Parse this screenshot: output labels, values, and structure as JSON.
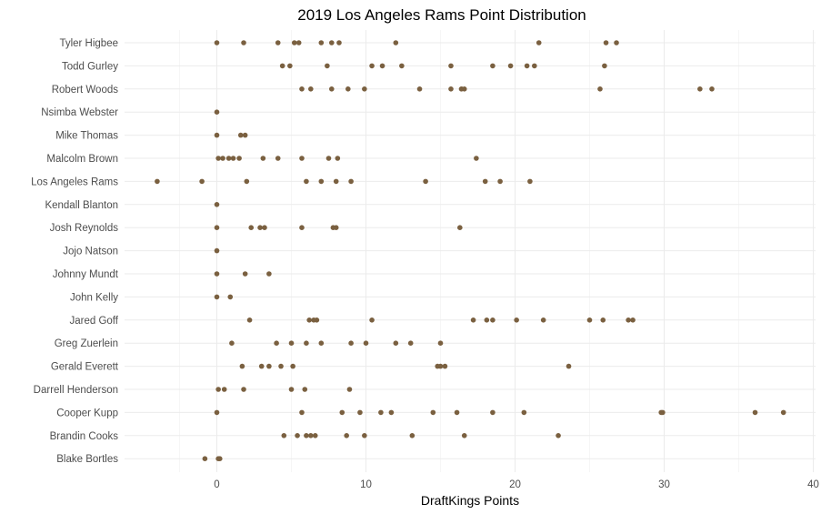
{
  "chart_data": {
    "type": "scatter",
    "title": "2019 Los Angeles Rams Point Distribution",
    "xlabel": "DraftKings Points",
    "ylabel": "",
    "xlim": [
      -5,
      40
    ],
    "x_ticks": [
      0,
      10,
      20,
      30,
      40
    ],
    "grid": true,
    "point_color": "#7a6040",
    "categories": [
      "Tyler Higbee",
      "Todd Gurley",
      "Robert Woods",
      "Nsimba Webster",
      "Mike Thomas",
      "Malcolm Brown",
      "Los Angeles Rams",
      "Kendall Blanton",
      "Josh Reynolds",
      "Jojo Natson",
      "Johnny Mundt",
      "John Kelly",
      "Jared Goff",
      "Greg Zuerlein",
      "Gerald Everett",
      "Darrell Henderson",
      "Cooper Kupp",
      "Brandin Cooks",
      "Blake Bortles"
    ],
    "series": [
      {
        "values": [
          0,
          1.8,
          4.1,
          5.2,
          5.5,
          7.0,
          7.7,
          8.2,
          12.0,
          21.6,
          26.1,
          26.8
        ]
      },
      {
        "values": [
          4.4,
          4.9,
          7.4,
          10.4,
          11.1,
          12.4,
          15.7,
          18.5,
          19.7,
          20.8,
          21.3,
          26.0
        ]
      },
      {
        "values": [
          5.7,
          6.3,
          7.7,
          8.8,
          9.9,
          13.6,
          15.7,
          16.4,
          16.6,
          25.7,
          32.4,
          33.2
        ]
      },
      {
        "values": [
          0
        ]
      },
      {
        "values": [
          0,
          1.6,
          1.9
        ]
      },
      {
        "values": [
          0.1,
          0.4,
          0.8,
          1.1,
          1.5,
          3.1,
          4.1,
          5.7,
          7.5,
          8.1,
          17.4
        ]
      },
      {
        "values": [
          -4.0,
          -1.0,
          2.0,
          6.0,
          7.0,
          8.0,
          9.0,
          14.0,
          18.0,
          19.0,
          21.0
        ]
      },
      {
        "values": [
          0
        ]
      },
      {
        "values": [
          0,
          2.3,
          2.9,
          3.2,
          5.7,
          7.8,
          8.0,
          16.3
        ]
      },
      {
        "values": [
          0
        ]
      },
      {
        "values": [
          0,
          1.9,
          3.5
        ]
      },
      {
        "values": [
          0,
          0.9
        ]
      },
      {
        "values": [
          2.2,
          6.2,
          6.5,
          6.7,
          10.4,
          17.2,
          18.1,
          18.5,
          20.1,
          21.9,
          25.0,
          25.9,
          27.6,
          27.9
        ]
      },
      {
        "values": [
          1.0,
          4.0,
          5.0,
          6.0,
          7.0,
          9.0,
          10.0,
          12.0,
          13.0,
          15.0
        ]
      },
      {
        "values": [
          1.7,
          3.0,
          3.5,
          4.3,
          5.1,
          14.8,
          15.0,
          15.3,
          23.6
        ]
      },
      {
        "values": [
          0.1,
          0.5,
          1.8,
          5.0,
          5.9,
          8.9
        ]
      },
      {
        "values": [
          0,
          5.7,
          8.4,
          9.6,
          11.0,
          11.7,
          14.5,
          16.1,
          18.5,
          20.6,
          29.8,
          29.9,
          36.1,
          38.0
        ]
      },
      {
        "values": [
          4.5,
          5.4,
          6.0,
          6.3,
          6.6,
          8.7,
          9.9,
          13.1,
          16.6,
          22.9
        ]
      },
      {
        "values": [
          -0.8,
          0.1,
          0.2
        ]
      }
    ]
  }
}
